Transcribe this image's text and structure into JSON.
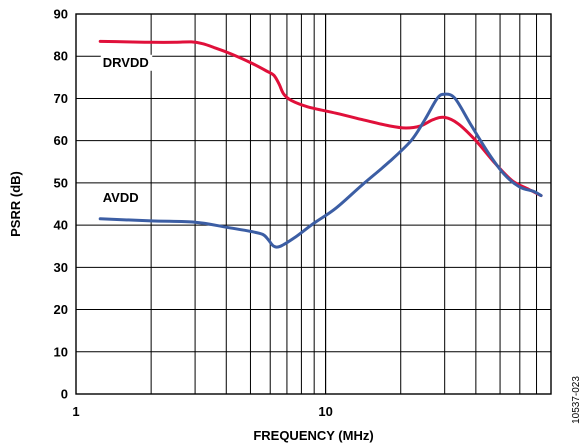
{
  "chart_data": {
    "type": "line",
    "xlabel": "FREQUENCY (MHz)",
    "ylabel": "PSRR (dB)",
    "x_scale": "log",
    "xlim": [
      1,
      80
    ],
    "ylim": [
      0,
      90
    ],
    "x_ticks": [
      {
        "value": 1,
        "label": "1"
      },
      {
        "value": 10,
        "label": "10"
      }
    ],
    "y_ticks": [
      0,
      10,
      20,
      30,
      40,
      50,
      60,
      70,
      80,
      90
    ],
    "grid": true,
    "series": [
      {
        "name": "DRVDD",
        "color": "#e0103a",
        "label_position": "upper-left",
        "points": [
          [
            1.25,
            83.5
          ],
          [
            1.6,
            83.4
          ],
          [
            2.0,
            83.3
          ],
          [
            2.5,
            83.3
          ],
          [
            2.9,
            83.4
          ],
          [
            3.2,
            83.0
          ],
          [
            3.6,
            82.0
          ],
          [
            4.2,
            80.5
          ],
          [
            5.0,
            78.5
          ],
          [
            5.8,
            76.5
          ],
          [
            6.2,
            75.5
          ],
          [
            6.5,
            73.5
          ],
          [
            6.8,
            71.0
          ],
          [
            7.3,
            69.5
          ],
          [
            8.5,
            68.0
          ],
          [
            11,
            66.5
          ],
          [
            14,
            65.0
          ],
          [
            18,
            63.5
          ],
          [
            21,
            63.0
          ],
          [
            24,
            63.5
          ],
          [
            27,
            65.0
          ],
          [
            30,
            65.5
          ],
          [
            34,
            64.0
          ],
          [
            40,
            60.0
          ],
          [
            48,
            54.5
          ],
          [
            56,
            50.5
          ],
          [
            65,
            48.5
          ],
          [
            73,
            47.0
          ]
        ]
      },
      {
        "name": "AVDD",
        "color": "#3c5ea4",
        "label_position": "left-middle",
        "points": [
          [
            1.25,
            41.5
          ],
          [
            2.0,
            41.0
          ],
          [
            3.0,
            40.7
          ],
          [
            4.0,
            39.5
          ],
          [
            5.0,
            38.5
          ],
          [
            5.6,
            37.8
          ],
          [
            5.9,
            36.5
          ],
          [
            6.2,
            35.0
          ],
          [
            6.6,
            35.0
          ],
          [
            7.5,
            37.0
          ],
          [
            9,
            40.5
          ],
          [
            11,
            44.0
          ],
          [
            14,
            49.5
          ],
          [
            18,
            55.0
          ],
          [
            22,
            60.0
          ],
          [
            25,
            65.0
          ],
          [
            28,
            70.0
          ],
          [
            30,
            71.0
          ],
          [
            33,
            70.0
          ],
          [
            38,
            64.0
          ],
          [
            45,
            57.0
          ],
          [
            52,
            52.0
          ],
          [
            60,
            49.0
          ],
          [
            68,
            48.0
          ],
          [
            73,
            47.0
          ]
        ]
      }
    ]
  },
  "watermark": "10537-023"
}
